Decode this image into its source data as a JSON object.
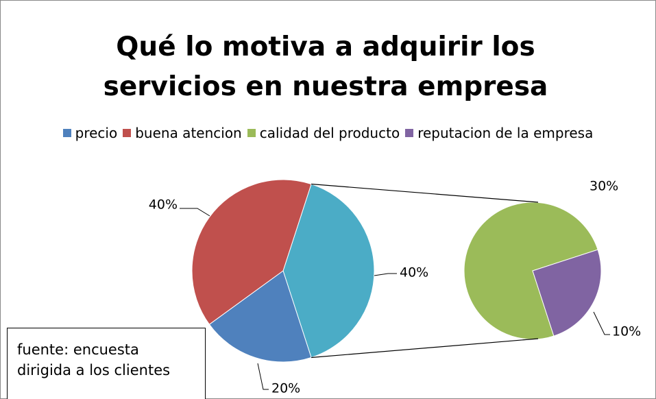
{
  "chart_data": {
    "type": "pie-of-pie",
    "title": "Qué lo motiva a adquirir los servicios en nuestra empresa",
    "categories": [
      "precio",
      "buena atencion",
      "calidad del producto",
      "reputacion de la empresa"
    ],
    "values": [
      20,
      40,
      30,
      10
    ],
    "value_labels": [
      "20%",
      "40%",
      "30%",
      "10%"
    ],
    "colors": [
      "#4f81bd",
      "#c0504d",
      "#9bbb59",
      "#8064a2"
    ],
    "other_value": 40,
    "other_label": "40%",
    "other_color": "#4bacc6",
    "legend": "top",
    "annotation": [
      "fuente: encuesta",
      "dirigida a los clientes"
    ]
  }
}
